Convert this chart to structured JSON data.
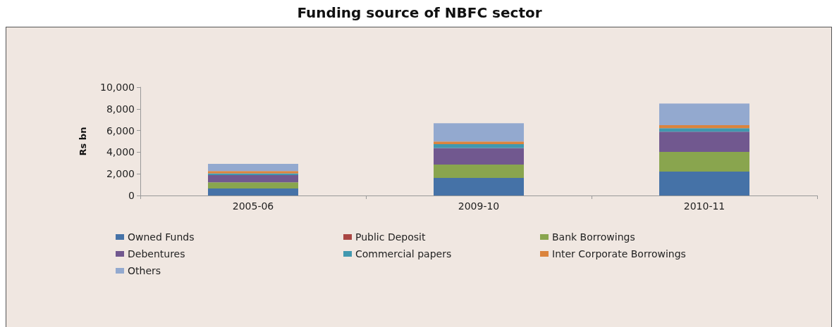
{
  "chart_data": {
    "type": "bar",
    "title": "Funding source of NBFC sector",
    "ylabel": "Rs bn",
    "categories": [
      "2005-06",
      "2009-10",
      "2010-11"
    ],
    "stacked": true,
    "series": [
      {
        "name": "Owned Funds",
        "color": "#4572a7",
        "values": [
          650,
          1620,
          2210
        ]
      },
      {
        "name": "Public Deposit",
        "color": "#aa4643",
        "values": [
          null,
          null,
          null
        ]
      },
      {
        "name": "Bank Borrowings",
        "color": "#89a54e",
        "values": [
          560,
          1240,
          1820
        ]
      },
      {
        "name": "Debentures",
        "color": "#71588f",
        "values": [
          670,
          1530,
          1860
        ]
      },
      {
        "name": "Commercial papers",
        "color": "#4198af",
        "values": [
          170,
          350,
          320
        ]
      },
      {
        "name": "Inter Corporate Borrowings",
        "color": "#db843d",
        "values": [
          200,
          240,
          280
        ]
      },
      {
        "name": "Others",
        "color": "#93a9cf",
        "values": [
          670,
          1690,
          2000
        ]
      }
    ],
    "ylim": [
      0,
      10000
    ],
    "yticks": [
      0,
      {
        "value": 2000,
        "label": "2,000"
      },
      {
        "value": 4000,
        "label": "4,000"
      },
      {
        "value": 6000,
        "label": "6,000"
      },
      {
        "value": 8000,
        "label": "8,000"
      },
      {
        "value": 10000,
        "label": "10,000"
      }
    ],
    "grid": false,
    "legend": "bottom"
  }
}
